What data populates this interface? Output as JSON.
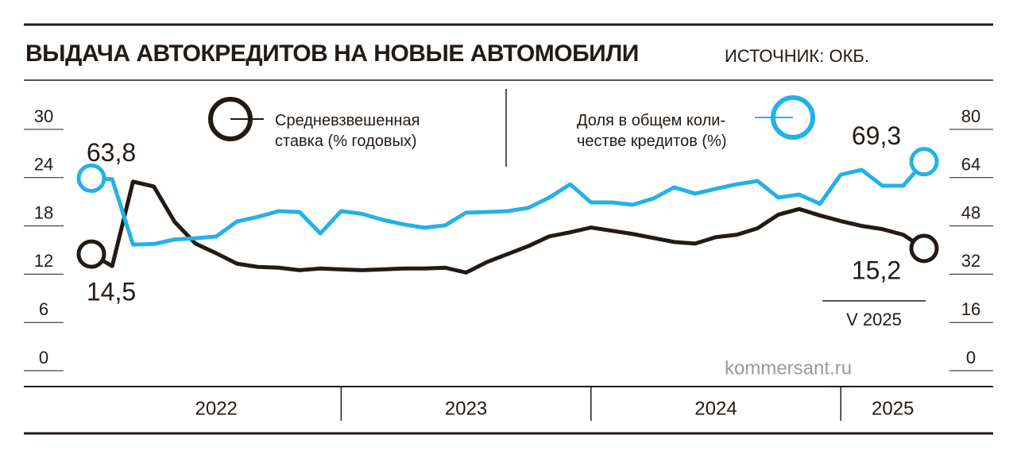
{
  "chart_data": {
    "type": "line",
    "title": "ВЫДАЧА АВТОКРЕДИТОВ НА НОВЫЕ АВТОМОБИЛИ",
    "source": "ИСТОЧНИК: ОКБ.",
    "watermark": "kommersant.ru",
    "annotation": "V 2025",
    "categories": [
      null,
      null,
      null,
      null,
      null,
      null,
      null,
      null,
      null,
      null,
      null,
      null,
      null,
      null,
      null,
      null,
      null,
      null,
      null,
      null,
      null,
      null,
      null,
      null,
      null,
      null,
      null,
      null,
      null,
      null,
      null,
      null,
      null,
      null,
      null,
      null,
      null,
      null,
      null,
      null,
      null
    ],
    "x_groups": [
      {
        "label": "2022",
        "span": 12
      },
      {
        "label": "2023",
        "span": 12
      },
      {
        "label": "2024",
        "span": 12
      },
      {
        "label": "2025",
        "span": 5
      }
    ],
    "ylim": [
      0,
      30
    ],
    "yticks": [
      0,
      6,
      12,
      18,
      24,
      30
    ],
    "y2lim": [
      0,
      80
    ],
    "y2ticks": [
      0,
      16,
      32,
      48,
      64,
      80
    ],
    "series": [
      {
        "name": "Средневзвешенная\nставка (% годовых)",
        "color": "#231a15",
        "values": [
          14.5,
          13.0,
          23.5,
          22.9,
          18.5,
          15.8,
          14.6,
          13.3,
          12.9,
          12.8,
          12.5,
          12.7,
          12.6,
          12.5,
          12.6,
          12.7,
          12.7,
          12.8,
          12.2,
          13.5,
          14.5,
          15.5,
          16.7,
          17.2,
          17.8,
          17.4,
          17.0,
          16.5,
          16.0,
          15.8,
          16.6,
          16.9,
          17.7,
          19.4,
          20.1,
          19.3,
          18.6,
          18.0,
          17.6,
          16.9,
          15.2
        ],
        "value_labels": [
          "14,5",
          null,
          null,
          null,
          null,
          null,
          null,
          null,
          null,
          null,
          null,
          null,
          null,
          null,
          null,
          null,
          null,
          null,
          null,
          null,
          null,
          null,
          null,
          null,
          null,
          null,
          null,
          null,
          null,
          null,
          null,
          null,
          null,
          null,
          null,
          null,
          null,
          null,
          null,
          null,
          "15,2"
        ]
      },
      {
        "name": "Доля в общем коли-\nчестве кредитов (%)",
        "color": "#23b1e8",
        "axis": "y2",
        "values": [
          63.8,
          63.5,
          41.8,
          42.0,
          43.5,
          43.9,
          44.5,
          49.5,
          51.0,
          52.9,
          52.6,
          45.5,
          52.9,
          52.0,
          50.0,
          48.5,
          47.4,
          48.2,
          52.4,
          52.6,
          52.9,
          54.0,
          57.4,
          61.8,
          55.8,
          55.8,
          55.0,
          57.1,
          60.8,
          58.7,
          60.3,
          61.8,
          62.9,
          57.4,
          58.4,
          55.3,
          65.0,
          66.6,
          61.3,
          61.3,
          69.3
        ],
        "value_labels": [
          "63,8",
          null,
          null,
          null,
          null,
          null,
          null,
          null,
          null,
          null,
          null,
          null,
          null,
          null,
          null,
          null,
          null,
          null,
          null,
          null,
          null,
          null,
          null,
          null,
          null,
          null,
          null,
          null,
          null,
          null,
          null,
          null,
          null,
          null,
          null,
          null,
          null,
          null,
          null,
          null,
          "69,3"
        ]
      }
    ]
  }
}
